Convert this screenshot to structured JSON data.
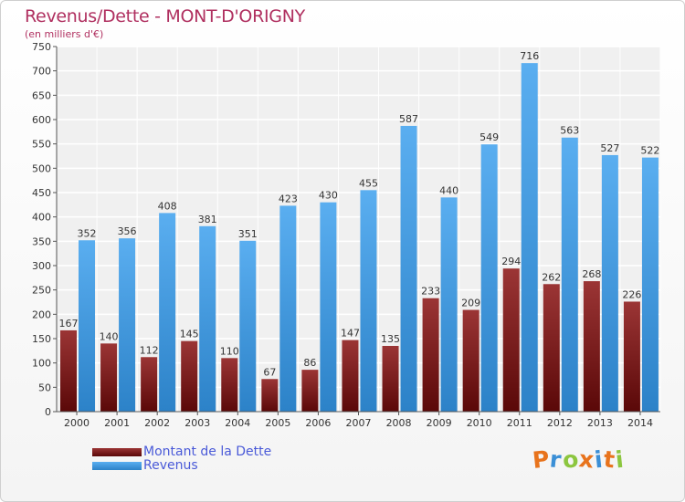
{
  "header": {
    "title": "Revenus/Dette - MONT-D'ORIGNY",
    "subtitle": "(en milliers d'€)"
  },
  "colors": {
    "debt": "#7a1a1a",
    "revenue": "#3d96dd",
    "title": "#b03060",
    "legend_text": "#4a5ad8"
  },
  "legend": [
    {
      "label": "Montant de la Dette",
      "color": "#7a1a1a"
    },
    {
      "label": "Revenus",
      "color": "#3d96dd"
    }
  ],
  "logo": {
    "text": "Proxiti"
  },
  "chart_data": {
    "type": "bar",
    "title": "Revenus/Dette - MONT-D'ORIGNY",
    "subtitle": "(en milliers d'€)",
    "categories": [
      "2000",
      "2001",
      "2002",
      "2003",
      "2004",
      "2005",
      "2006",
      "2007",
      "2008",
      "2009",
      "2010",
      "2011",
      "2012",
      "2013",
      "2014"
    ],
    "series": [
      {
        "name": "Montant de la Dette",
        "values": [
          167,
          140,
          112,
          145,
          110,
          67,
          86,
          147,
          135,
          233,
          209,
          294,
          262,
          268,
          226
        ]
      },
      {
        "name": "Revenus",
        "values": [
          352,
          356,
          408,
          381,
          351,
          423,
          430,
          455,
          587,
          440,
          549,
          716,
          563,
          527,
          522
        ]
      }
    ],
    "ylim": [
      0,
      750
    ],
    "yticks": [
      0,
      50,
      100,
      150,
      200,
      250,
      300,
      350,
      400,
      450,
      500,
      550,
      600,
      650,
      700,
      750
    ],
    "grid": true,
    "legend_position": "bottom-left"
  }
}
